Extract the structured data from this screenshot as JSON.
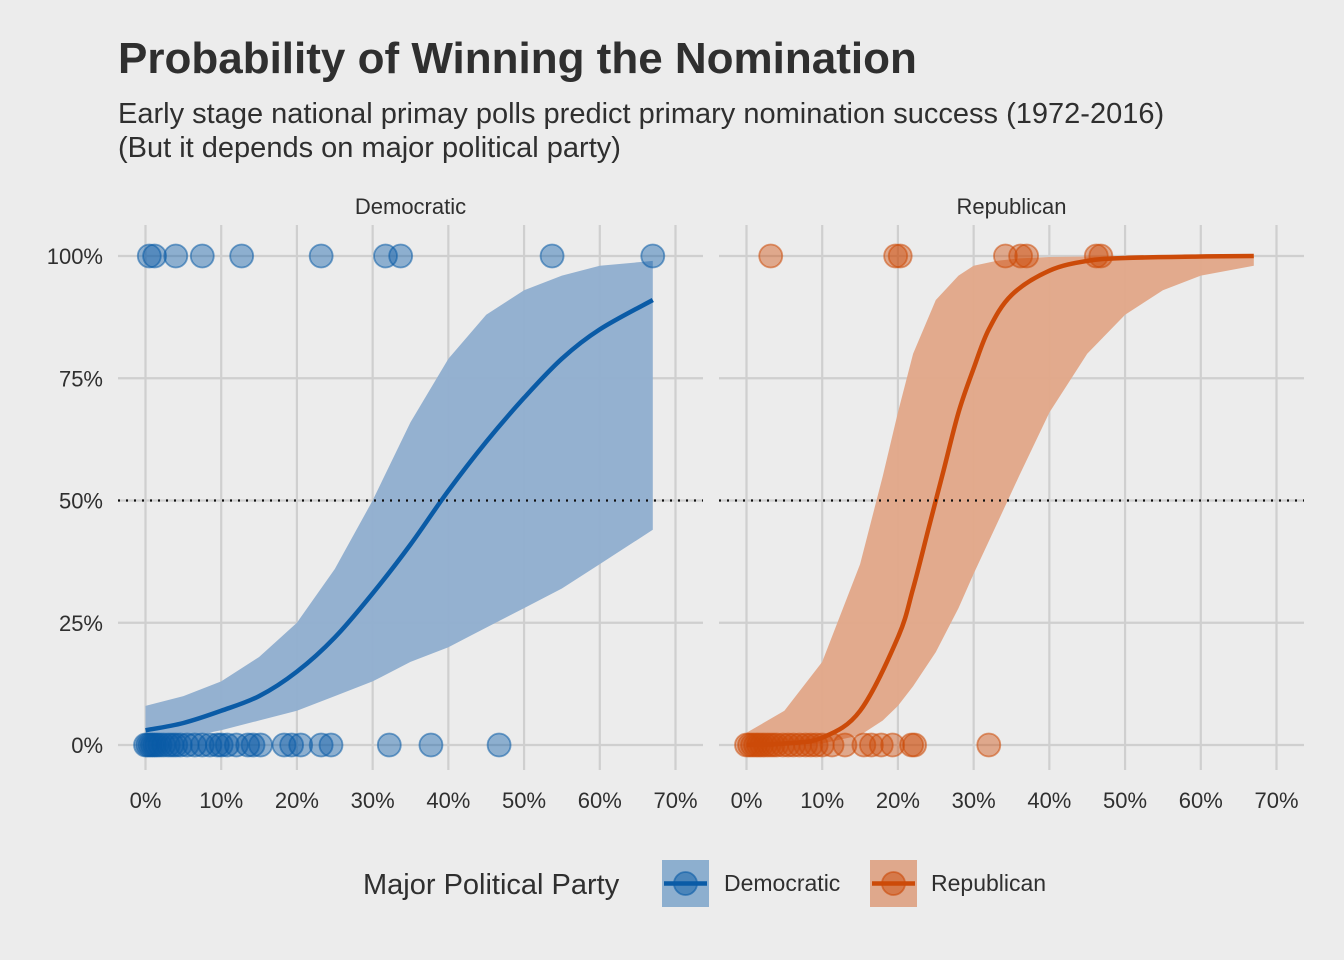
{
  "title": "Probability of Winning the Nomination",
  "subtitle_line1": "Early stage national primay polls predict primary nomination success (1972-2016)",
  "subtitle_line2": "(But it depends on major political party)",
  "legend": {
    "title": "Major Political Party",
    "items": [
      {
        "label": "Democratic",
        "color": "#0a5ba6"
      },
      {
        "label": "Republican",
        "color": "#cc4a08"
      }
    ]
  },
  "reference_line": 0.5,
  "chart_data": {
    "type": "scatter",
    "xlim": [
      0,
      0.7
    ],
    "ylim": [
      0,
      1
    ],
    "x_ticks": [
      0,
      0.1,
      0.2,
      0.3,
      0.4,
      0.5,
      0.6,
      0.7
    ],
    "x_tick_labels": [
      "0%",
      "10%",
      "20%",
      "30%",
      "40%",
      "50%",
      "60%",
      "70%"
    ],
    "y_ticks": [
      0,
      0.25,
      0.5,
      0.75,
      1
    ],
    "y_tick_labels": [
      "0%",
      "25%",
      "50%",
      "75%",
      "100%"
    ],
    "grid": true,
    "legend_position": "bottom",
    "panels": [
      {
        "name": "Democratic",
        "color": "#0a5ba6",
        "ribbon_color": "#8faecf",
        "fit": {
          "x": [
            0,
            0.05,
            0.1,
            0.15,
            0.2,
            0.25,
            0.3,
            0.35,
            0.4,
            0.45,
            0.5,
            0.55,
            0.6,
            0.67
          ],
          "y": [
            0.03,
            0.045,
            0.07,
            0.1,
            0.15,
            0.22,
            0.31,
            0.41,
            0.52,
            0.62,
            0.71,
            0.79,
            0.85,
            0.91
          ]
        },
        "ribbon": {
          "x": [
            0,
            0.05,
            0.1,
            0.15,
            0.2,
            0.25,
            0.3,
            0.35,
            0.4,
            0.45,
            0.5,
            0.55,
            0.6,
            0.67
          ],
          "lower": [
            0.005,
            0.015,
            0.03,
            0.05,
            0.07,
            0.1,
            0.13,
            0.17,
            0.2,
            0.24,
            0.28,
            0.32,
            0.37,
            0.44
          ],
          "upper": [
            0.08,
            0.1,
            0.13,
            0.18,
            0.25,
            0.36,
            0.5,
            0.66,
            0.79,
            0.88,
            0.93,
            0.96,
            0.98,
            0.99
          ]
        },
        "points": [
          {
            "x": 0.005,
            "y": 1
          },
          {
            "x": 0.012,
            "y": 1
          },
          {
            "x": 0.04,
            "y": 1
          },
          {
            "x": 0.075,
            "y": 1
          },
          {
            "x": 0.127,
            "y": 1
          },
          {
            "x": 0.232,
            "y": 1
          },
          {
            "x": 0.317,
            "y": 1
          },
          {
            "x": 0.337,
            "y": 1
          },
          {
            "x": 0.537,
            "y": 1
          },
          {
            "x": 0.67,
            "y": 1
          },
          {
            "x": 0.0,
            "y": 0
          },
          {
            "x": 0.003,
            "y": 0
          },
          {
            "x": 0.006,
            "y": 0
          },
          {
            "x": 0.009,
            "y": 0
          },
          {
            "x": 0.012,
            "y": 0
          },
          {
            "x": 0.015,
            "y": 0
          },
          {
            "x": 0.019,
            "y": 0
          },
          {
            "x": 0.024,
            "y": 0
          },
          {
            "x": 0.03,
            "y": 0
          },
          {
            "x": 0.035,
            "y": 0
          },
          {
            "x": 0.04,
            "y": 0
          },
          {
            "x": 0.046,
            "y": 0
          },
          {
            "x": 0.055,
            "y": 0
          },
          {
            "x": 0.065,
            "y": 0
          },
          {
            "x": 0.075,
            "y": 0
          },
          {
            "x": 0.085,
            "y": 0
          },
          {
            "x": 0.095,
            "y": 0
          },
          {
            "x": 0.1,
            "y": 0
          },
          {
            "x": 0.108,
            "y": 0
          },
          {
            "x": 0.12,
            "y": 0
          },
          {
            "x": 0.135,
            "y": 0
          },
          {
            "x": 0.142,
            "y": 0
          },
          {
            "x": 0.152,
            "y": 0
          },
          {
            "x": 0.183,
            "y": 0
          },
          {
            "x": 0.193,
            "y": 0
          },
          {
            "x": 0.205,
            "y": 0
          },
          {
            "x": 0.232,
            "y": 0
          },
          {
            "x": 0.245,
            "y": 0
          },
          {
            "x": 0.322,
            "y": 0
          },
          {
            "x": 0.377,
            "y": 0
          },
          {
            "x": 0.467,
            "y": 0
          }
        ]
      },
      {
        "name": "Republican",
        "color": "#cc4a08",
        "ribbon_color": "#e2a688",
        "fit": {
          "x": [
            0,
            0.05,
            0.1,
            0.15,
            0.2,
            0.22,
            0.24,
            0.26,
            0.28,
            0.3,
            0.32,
            0.35,
            0.4,
            0.45,
            0.5,
            0.6,
            0.67
          ],
          "y": [
            0.0,
            0.003,
            0.015,
            0.07,
            0.22,
            0.32,
            0.44,
            0.56,
            0.68,
            0.77,
            0.85,
            0.92,
            0.97,
            0.99,
            0.996,
            0.999,
            1.0
          ]
        },
        "ribbon": {
          "x": [
            0,
            0.05,
            0.1,
            0.15,
            0.18,
            0.2,
            0.22,
            0.25,
            0.28,
            0.3,
            0.33,
            0.36,
            0.4,
            0.45,
            0.5,
            0.55,
            0.6,
            0.67
          ],
          "lower": [
            0.0,
            0.0,
            0.003,
            0.02,
            0.05,
            0.08,
            0.12,
            0.19,
            0.28,
            0.35,
            0.45,
            0.55,
            0.68,
            0.8,
            0.88,
            0.93,
            0.96,
            0.98
          ],
          "upper": [
            0.025,
            0.07,
            0.17,
            0.37,
            0.55,
            0.68,
            0.8,
            0.91,
            0.96,
            0.98,
            0.99,
            0.995,
            0.998,
            0.999,
            1.0,
            1.0,
            1.0,
            1.0
          ]
        },
        "points": [
          {
            "x": 0.032,
            "y": 1
          },
          {
            "x": 0.197,
            "y": 1
          },
          {
            "x": 0.203,
            "y": 1
          },
          {
            "x": 0.342,
            "y": 1
          },
          {
            "x": 0.362,
            "y": 1
          },
          {
            "x": 0.37,
            "y": 1
          },
          {
            "x": 0.462,
            "y": 1
          },
          {
            "x": 0.468,
            "y": 1
          },
          {
            "x": 0.0,
            "y": 0
          },
          {
            "x": 0.004,
            "y": 0
          },
          {
            "x": 0.008,
            "y": 0
          },
          {
            "x": 0.012,
            "y": 0
          },
          {
            "x": 0.016,
            "y": 0
          },
          {
            "x": 0.02,
            "y": 0
          },
          {
            "x": 0.025,
            "y": 0
          },
          {
            "x": 0.03,
            "y": 0
          },
          {
            "x": 0.035,
            "y": 0
          },
          {
            "x": 0.04,
            "y": 0
          },
          {
            "x": 0.048,
            "y": 0
          },
          {
            "x": 0.055,
            "y": 0
          },
          {
            "x": 0.062,
            "y": 0
          },
          {
            "x": 0.07,
            "y": 0
          },
          {
            "x": 0.078,
            "y": 0
          },
          {
            "x": 0.085,
            "y": 0
          },
          {
            "x": 0.092,
            "y": 0
          },
          {
            "x": 0.1,
            "y": 0
          },
          {
            "x": 0.113,
            "y": 0
          },
          {
            "x": 0.13,
            "y": 0
          },
          {
            "x": 0.155,
            "y": 0
          },
          {
            "x": 0.165,
            "y": 0
          },
          {
            "x": 0.178,
            "y": 0
          },
          {
            "x": 0.193,
            "y": 0
          },
          {
            "x": 0.218,
            "y": 0
          },
          {
            "x": 0.222,
            "y": 0
          },
          {
            "x": 0.32,
            "y": 0
          }
        ]
      }
    ]
  }
}
